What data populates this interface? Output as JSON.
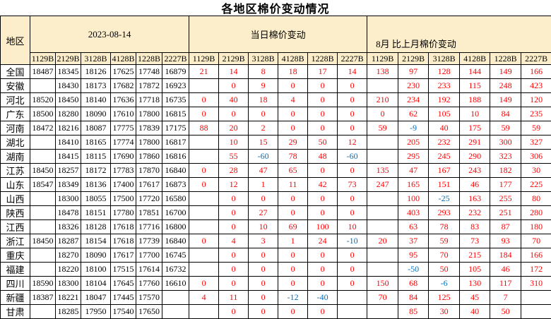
{
  "colors": {
    "header_bg": "#FCEECB",
    "grid": "#000000",
    "title_color": "#000000",
    "positive_value": "#FF0000",
    "negative_value": "#0070C0",
    "base_price_value": "#000000"
  },
  "chart_data": {
    "type": "table",
    "title": "各地区棉价变动情况",
    "region_header": "地区",
    "groups": [
      {
        "label": "2023-08-14",
        "columns": [
          "1129B",
          "2129B",
          "3128B",
          "4128B",
          "1228B",
          "2227B"
        ]
      },
      {
        "label": "当日棉价变动",
        "columns": [
          "1129B",
          "2129B",
          "3128B",
          "4128B",
          "1228B",
          "2227B"
        ]
      },
      {
        "label": "8月 比上月棉价变动",
        "columns": [
          "1129B",
          "2129B",
          "3128B",
          "4128B",
          "1228B",
          "2227B"
        ]
      }
    ],
    "rows": [
      {
        "region": "全国",
        "g1": [
          "18487",
          "18345",
          "18126",
          "17625",
          "17748",
          "16879"
        ],
        "g2": [
          "21",
          "14",
          "8",
          "18",
          "17",
          "14"
        ],
        "g3": [
          "138",
          "97",
          "128",
          "144",
          "149",
          "166"
        ]
      },
      {
        "region": "安徽",
        "g1": [
          "",
          "18430",
          "18173",
          "17682",
          "17872",
          "16923"
        ],
        "g2": [
          "",
          "0",
          "9",
          "0",
          "0",
          "0"
        ],
        "g3": [
          "",
          "230",
          "233",
          "115",
          "248",
          "423"
        ]
      },
      {
        "region": "河北",
        "g1": [
          "18520",
          "18450",
          "18140",
          "17636",
          "17718",
          "16735"
        ],
        "g2": [
          "0",
          "40",
          "18",
          "4",
          "0",
          "0"
        ],
        "g3": [
          "210",
          "234",
          "192",
          "188",
          "149",
          "120"
        ]
      },
      {
        "region": "广东",
        "g1": [
          "18500",
          "18280",
          "18090",
          "17610",
          "17800",
          "16815"
        ],
        "g2": [
          "0",
          "0",
          "0",
          "0",
          "0",
          "0"
        ],
        "g3": [
          "0",
          "62",
          "105",
          "10",
          "84",
          "235"
        ]
      },
      {
        "region": "河南",
        "g1": [
          "18472",
          "18216",
          "18087",
          "17775",
          "17839",
          "17175"
        ],
        "g2": [
          "88",
          "20",
          "2",
          "0",
          "0",
          "0"
        ],
        "g3": [
          "59",
          "-9",
          "40",
          "175",
          "59",
          "59"
        ]
      },
      {
        "region": "湖北",
        "g1": [
          "",
          "18410",
          "18165",
          "17774",
          "17800",
          "16817"
        ],
        "g2": [
          "",
          "10",
          "15",
          "29",
          "50",
          "12"
        ],
        "g3": [
          "",
          "205",
          "232",
          "291",
          "300",
          "327"
        ]
      },
      {
        "region": "湖南",
        "g1": [
          "",
          "18415",
          "18115",
          "17690",
          "17860",
          "16816"
        ],
        "g2": [
          "",
          "55",
          "-60",
          "78",
          "48",
          "-60"
        ],
        "g3": [
          "",
          "295",
          "245",
          "290",
          "323",
          "306"
        ]
      },
      {
        "region": "江苏",
        "g1": [
          "18450",
          "18257",
          "18172",
          "17783",
          "17870",
          "16840"
        ],
        "g2": [
          "0",
          "28",
          "47",
          "65",
          "0",
          "0"
        ],
        "g3": [
          "135",
          "47",
          "167",
          "243",
          "182",
          "30"
        ]
      },
      {
        "region": "山东",
        "g1": [
          "18547",
          "18349",
          "18136",
          "17400",
          "17617",
          "16873"
        ],
        "g2": [
          "0",
          "12",
          "1",
          "11",
          "42",
          "73"
        ],
        "g3": [
          "247",
          "165",
          "151",
          "46",
          "177",
          "225"
        ]
      },
      {
        "region": "山西",
        "g1": [
          "",
          "18300",
          "18055",
          "17500",
          "17720",
          "16580"
        ],
        "g2": [
          "",
          "0",
          "0",
          "0",
          "0",
          "0"
        ],
        "g3": [
          "",
          "100",
          "-25",
          "163",
          "255",
          "80"
        ]
      },
      {
        "region": "陕西",
        "g1": [
          "",
          "18478",
          "18151",
          "17780",
          "17851",
          "16700"
        ],
        "g2": [
          "",
          "0",
          "27",
          "0",
          "0",
          "0"
        ],
        "g3": [
          "",
          "403",
          "293",
          "232",
          "251",
          "280"
        ]
      },
      {
        "region": "江西",
        "g1": [
          "",
          "18326",
          "18128",
          "17618",
          "17716",
          "16800"
        ],
        "g2": [
          "",
          "0",
          "10",
          "69",
          "100",
          "10"
        ],
        "g3": [
          "",
          "63",
          "78",
          "83",
          "87",
          "180"
        ]
      },
      {
        "region": "浙江",
        "g1": [
          "18450",
          "18287",
          "18154",
          "17618",
          "17739",
          "16840"
        ],
        "g2": [
          "0",
          "4",
          "3",
          "1",
          "24",
          "-10"
        ],
        "g3": [
          "20",
          "37",
          "59",
          "73",
          "93",
          "70"
        ]
      },
      {
        "region": "重庆",
        "g1": [
          "",
          "18270",
          "18090",
          "17617",
          "17700",
          "16745"
        ],
        "g2": [
          "",
          "0",
          "0",
          "0",
          "0",
          "0"
        ],
        "g3": [
          "",
          "95",
          "70",
          "215",
          "184",
          "166"
        ]
      },
      {
        "region": "福建",
        "g1": [
          "",
          "18220",
          "18100",
          "17515",
          "17614",
          "16732"
        ],
        "g2": [
          "",
          "0",
          "0",
          "0",
          "0",
          "0"
        ],
        "g3": [
          "",
          "-50",
          "50",
          "105",
          "46",
          "172"
        ]
      },
      {
        "region": "四川",
        "g1": [
          "18590",
          "18300",
          "18104",
          "17645",
          "17760",
          "16610"
        ],
        "g2": [
          "0",
          "0",
          "0",
          "0",
          "0",
          "0"
        ],
        "g3": [
          "150",
          "68",
          "-6",
          "130",
          "117",
          "310"
        ]
      },
      {
        "region": "新疆",
        "g1": [
          "18387",
          "18221",
          "18047",
          "17445",
          "17570",
          ""
        ],
        "g2": [
          "4",
          "11",
          "0",
          "-12",
          "-40",
          ""
        ],
        "g3": [
          "70",
          "84",
          "125",
          "45",
          "7",
          ""
        ]
      },
      {
        "region": "甘肃",
        "g1": [
          "",
          "18285",
          "17950",
          "17540",
          "17650",
          ""
        ],
        "g2": [
          "",
          "0",
          "0",
          "0",
          "0",
          ""
        ],
        "g3": [
          "",
          "85",
          "30",
          "40",
          "50",
          ""
        ]
      }
    ]
  }
}
